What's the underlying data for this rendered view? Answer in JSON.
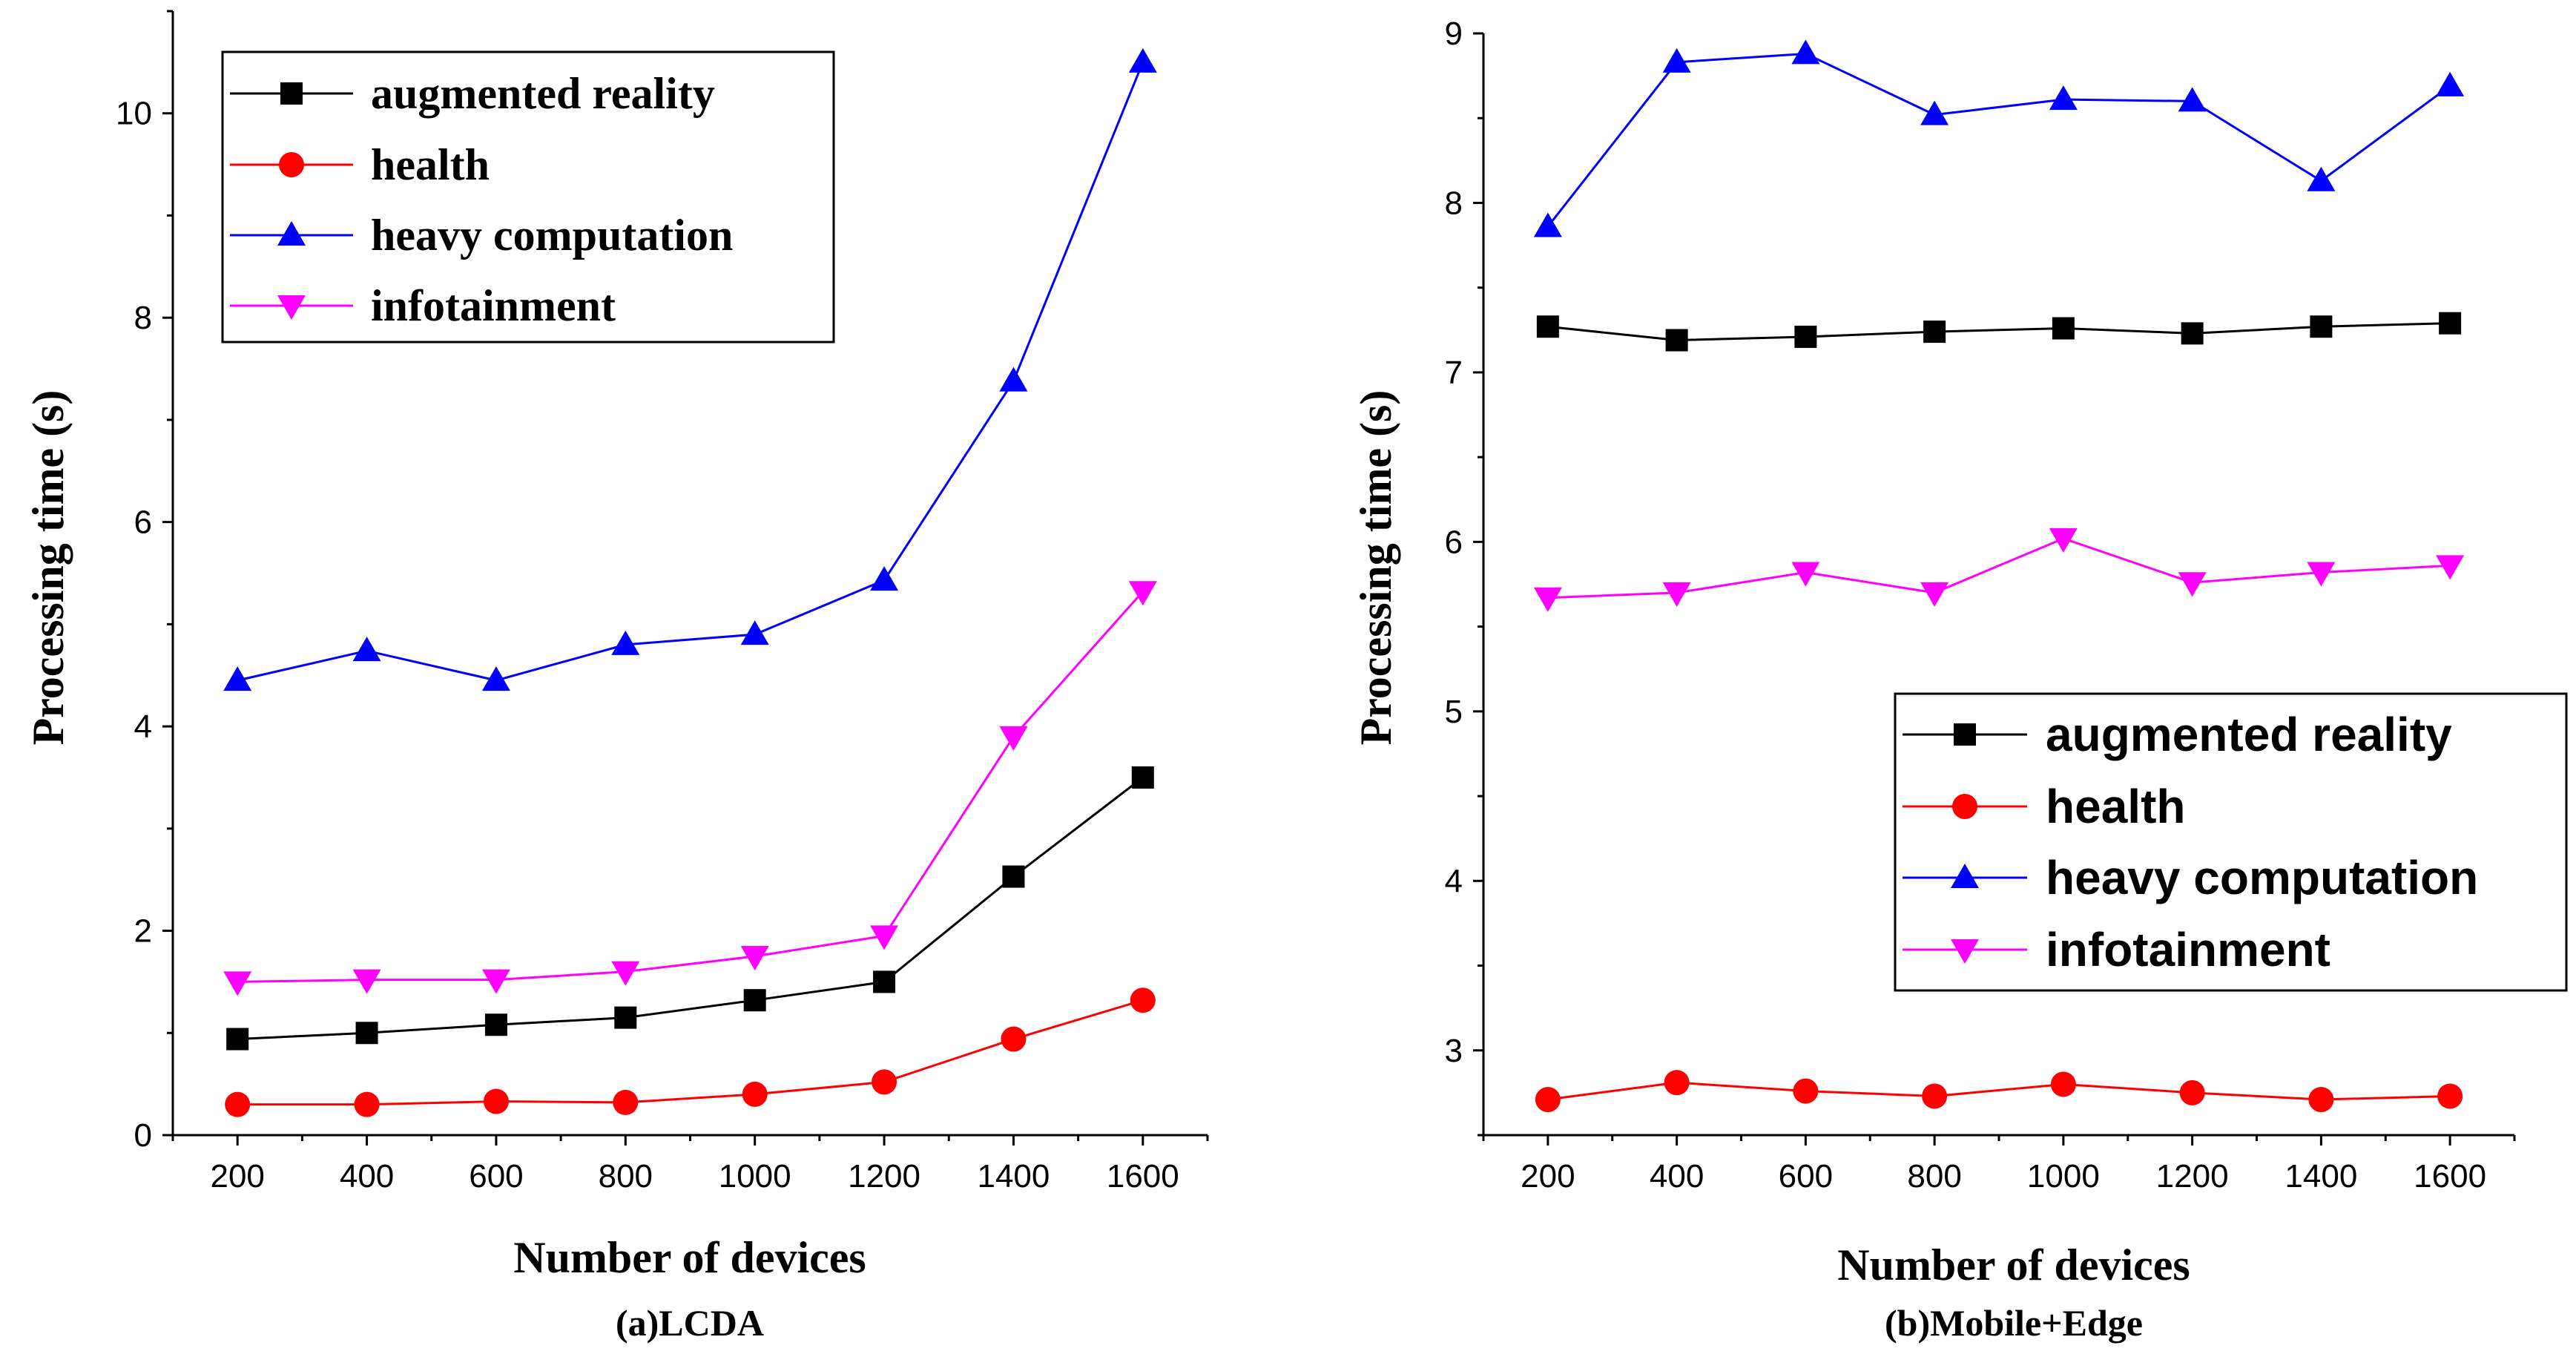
{
  "chart_data": [
    {
      "type": "line",
      "caption": "(a)LCDA",
      "xlabel": "Number of devices",
      "ylabel": "Processing time (s)",
      "x": [
        200,
        400,
        600,
        800,
        1000,
        1200,
        1400,
        1600
      ],
      "xlim": [
        100,
        1700
      ],
      "ylim": [
        0,
        11
      ],
      "xticks": [
        "200",
        "400",
        "600",
        "800",
        "1000",
        "1200",
        "1400",
        "1600"
      ],
      "yticks": [
        0,
        2,
        4,
        6,
        8,
        10
      ],
      "legend_position": "top-left",
      "series": [
        {
          "name": "augmented reality",
          "color": "#000000",
          "marker": "square",
          "values": [
            0.94,
            1.0,
            1.08,
            1.15,
            1.32,
            1.5,
            2.53,
            3.5
          ]
        },
        {
          "name": "health",
          "color": "#ff0000",
          "marker": "circle",
          "values": [
            0.3,
            0.3,
            0.33,
            0.32,
            0.4,
            0.52,
            0.94,
            1.32
          ]
        },
        {
          "name": "heavy computation",
          "color": "#0000ff",
          "marker": "triangle-up",
          "values": [
            4.45,
            4.74,
            4.45,
            4.8,
            4.9,
            5.43,
            7.38,
            10.5
          ]
        },
        {
          "name": "infotainment",
          "color": "#ff00ff",
          "marker": "triangle-down",
          "values": [
            1.5,
            1.52,
            1.52,
            1.6,
            1.75,
            1.95,
            3.9,
            5.32
          ]
        }
      ]
    },
    {
      "type": "line",
      "caption": "(b)Mobile+Edge",
      "xlabel": "Number of devices",
      "ylabel": "Processing time (s)",
      "x": [
        200,
        400,
        600,
        800,
        1000,
        1200,
        1400,
        1600
      ],
      "xlim": [
        100,
        1700
      ],
      "ylim": [
        2.5,
        9.0
      ],
      "xticks": [
        "200",
        "400",
        "600",
        "800",
        "1000",
        "1200",
        "1400",
        "1600"
      ],
      "yticks": [
        3,
        4,
        5,
        6,
        7,
        8,
        9
      ],
      "legend_position": "center-right",
      "series": [
        {
          "name": "augmented reality",
          "color": "#000000",
          "marker": "square",
          "values": [
            7.27,
            7.19,
            7.21,
            7.24,
            7.26,
            7.23,
            7.27,
            7.29
          ]
        },
        {
          "name": "health",
          "color": "#ff0000",
          "marker": "circle",
          "values": [
            2.71,
            2.81,
            2.76,
            2.73,
            2.8,
            2.75,
            2.71,
            2.73
          ]
        },
        {
          "name": "heavy computation",
          "color": "#0000ff",
          "marker": "triangle-up",
          "values": [
            7.86,
            8.83,
            8.88,
            8.52,
            8.61,
            8.6,
            8.13,
            8.69
          ]
        },
        {
          "name": "infotainment",
          "color": "#ff00ff",
          "marker": "triangle-down",
          "values": [
            5.67,
            5.7,
            5.82,
            5.7,
            6.02,
            5.76,
            5.82,
            5.86
          ]
        }
      ]
    }
  ]
}
